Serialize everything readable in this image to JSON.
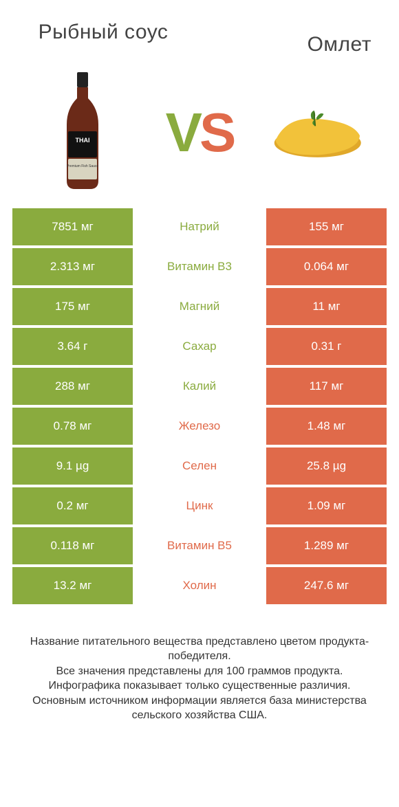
{
  "header": {
    "left_title": "Рыбный соус",
    "right_title": "Омлет",
    "vs_v": "V",
    "vs_s": "S"
  },
  "colors": {
    "green": "#8aab3e",
    "orange": "#e06a4a",
    "mid_green_text": "#8aab3e",
    "mid_orange_text": "#e06a4a",
    "white": "#ffffff"
  },
  "rows": [
    {
      "label": "Натрий",
      "left": "7851 мг",
      "right": "155 мг",
      "winner": "left"
    },
    {
      "label": "Витамин B3",
      "left": "2.313 мг",
      "right": "0.064 мг",
      "winner": "left"
    },
    {
      "label": "Магний",
      "left": "175 мг",
      "right": "11 мг",
      "winner": "left"
    },
    {
      "label": "Сахар",
      "left": "3.64 г",
      "right": "0.31 г",
      "winner": "left"
    },
    {
      "label": "Калий",
      "left": "288 мг",
      "right": "117 мг",
      "winner": "left"
    },
    {
      "label": "Железо",
      "left": "0.78 мг",
      "right": "1.48 мг",
      "winner": "right"
    },
    {
      "label": "Селен",
      "left": "9.1 µg",
      "right": "25.8 µg",
      "winner": "right"
    },
    {
      "label": "Цинк",
      "left": "0.2 мг",
      "right": "1.09 мг",
      "winner": "right"
    },
    {
      "label": "Витамин B5",
      "left": "0.118 мг",
      "right": "1.289 мг",
      "winner": "right"
    },
    {
      "label": "Холин",
      "left": "13.2 мг",
      "right": "247.6 мг",
      "winner": "right"
    }
  ],
  "footer": {
    "line1": "Название питательного вещества представлено цветом продукта-победителя.",
    "line2": "Все значения представлены для 100 граммов продукта.",
    "line3": "Инфографика показывает только существенные различия.",
    "line4": "Основным источником информации является база министерства сельского хозяйства США."
  }
}
